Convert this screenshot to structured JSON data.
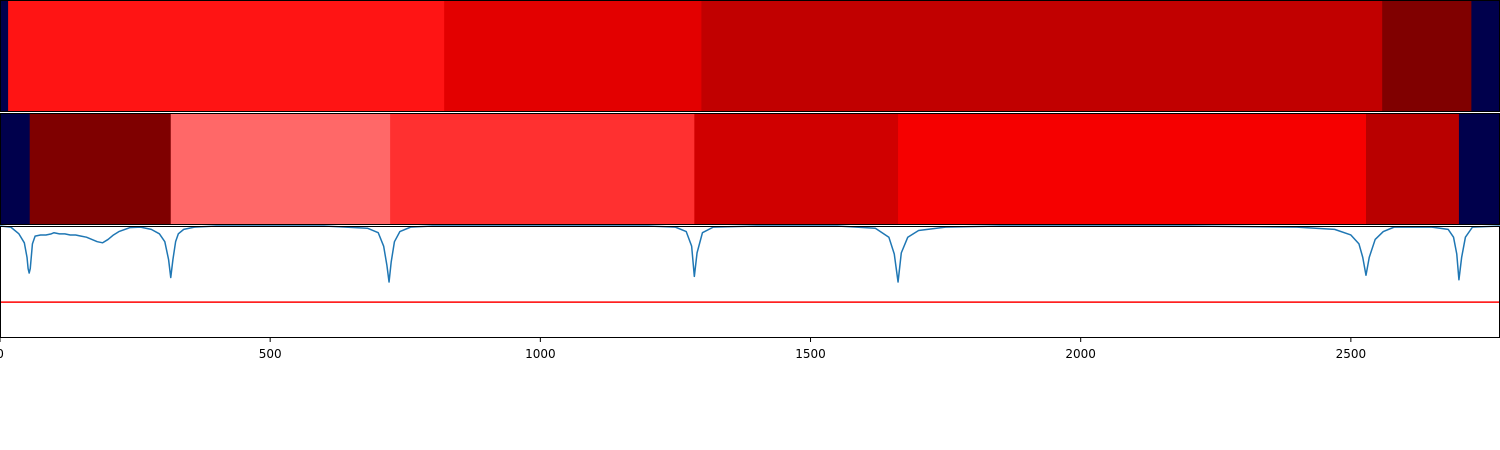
{
  "chart_data": [
    {
      "type": "heatmap",
      "panel": "segmentation-row-1",
      "segments": [
        {
          "start": 0,
          "end": 15,
          "color": "#00004c"
        },
        {
          "start": 15,
          "end": 822,
          "color": "#ff1414"
        },
        {
          "start": 822,
          "end": 1298,
          "color": "#e30000"
        },
        {
          "start": 1298,
          "end": 2558,
          "color": "#c10000"
        },
        {
          "start": 2558,
          "end": 2723,
          "color": "#800000"
        },
        {
          "start": 2723,
          "end": 2776,
          "color": "#00004c"
        }
      ]
    },
    {
      "type": "heatmap",
      "panel": "segmentation-row-2",
      "segments": [
        {
          "start": 0,
          "end": 55,
          "color": "#00004c"
        },
        {
          "start": 55,
          "end": 316,
          "color": "#7f0000"
        },
        {
          "start": 316,
          "end": 722,
          "color": "#ff6868"
        },
        {
          "start": 722,
          "end": 1285,
          "color": "#ff3030"
        },
        {
          "start": 1285,
          "end": 1662,
          "color": "#d00000"
        },
        {
          "start": 1662,
          "end": 2528,
          "color": "#f60000"
        },
        {
          "start": 2528,
          "end": 2700,
          "color": "#b90000"
        },
        {
          "start": 2700,
          "end": 2776,
          "color": "#00004c"
        }
      ]
    },
    {
      "type": "line",
      "panel": "signal",
      "xlim": [
        0,
        2776
      ],
      "ylim": [
        0,
        1
      ],
      "xticks": [
        0,
        500,
        1000,
        1500,
        2000,
        2500
      ],
      "threshold": {
        "y": 0.32,
        "color": "#ff0000"
      },
      "series": [
        {
          "color": "#1f77b4",
          "x": [
            0,
            20,
            35,
            45,
            50,
            52,
            54,
            56,
            60,
            65,
            75,
            85,
            95,
            100,
            110,
            120,
            130,
            140,
            150,
            160,
            170,
            180,
            190,
            200,
            210,
            220,
            240,
            260,
            280,
            295,
            305,
            312,
            316,
            320,
            325,
            330,
            340,
            360,
            400,
            500,
            600,
            680,
            700,
            710,
            716,
            720,
            724,
            730,
            740,
            760,
            800,
            1000,
            1200,
            1250,
            1270,
            1280,
            1285,
            1290,
            1300,
            1320,
            1400,
            1550,
            1620,
            1645,
            1655,
            1662,
            1668,
            1680,
            1700,
            1750,
            1850,
            2000,
            2200,
            2400,
            2470,
            2500,
            2515,
            2522,
            2528,
            2534,
            2545,
            2560,
            2580,
            2650,
            2680,
            2690,
            2696,
            2700,
            2705,
            2712,
            2725,
            2776
          ],
          "y": [
            1.0,
            0.99,
            0.93,
            0.85,
            0.72,
            0.62,
            0.58,
            0.62,
            0.84,
            0.91,
            0.92,
            0.92,
            0.93,
            0.94,
            0.93,
            0.93,
            0.92,
            0.92,
            0.91,
            0.9,
            0.88,
            0.86,
            0.85,
            0.88,
            0.92,
            0.95,
            0.985,
            0.99,
            0.97,
            0.93,
            0.86,
            0.7,
            0.54,
            0.7,
            0.86,
            0.93,
            0.97,
            0.99,
            1.0,
            1.0,
            1.0,
            0.98,
            0.94,
            0.82,
            0.65,
            0.5,
            0.68,
            0.86,
            0.95,
            0.99,
            1.0,
            1.0,
            1.0,
            0.99,
            0.95,
            0.82,
            0.55,
            0.76,
            0.94,
            0.99,
            1.0,
            1.0,
            0.98,
            0.9,
            0.75,
            0.5,
            0.76,
            0.9,
            0.96,
            0.99,
            1.0,
            1.0,
            1.0,
            0.99,
            0.97,
            0.92,
            0.84,
            0.72,
            0.56,
            0.72,
            0.88,
            0.95,
            0.99,
            0.99,
            0.97,
            0.9,
            0.75,
            0.52,
            0.72,
            0.9,
            0.99,
            1.0
          ]
        }
      ]
    }
  ]
}
